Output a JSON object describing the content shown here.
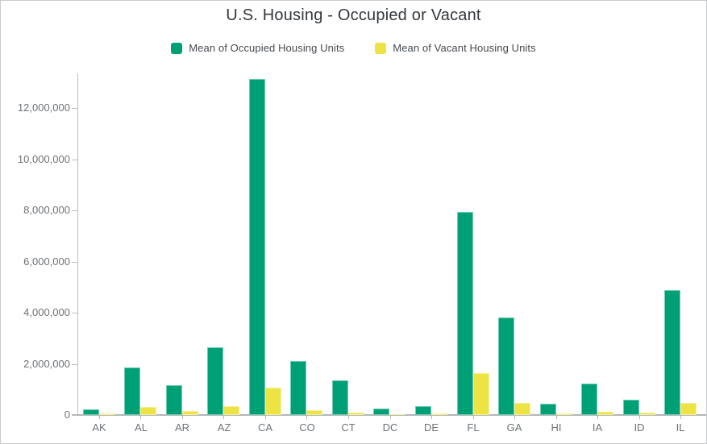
{
  "chart_data": {
    "type": "bar",
    "title": "U.S. Housing - Occupied or Vacant",
    "categories": [
      "AK",
      "AL",
      "AR",
      "AZ",
      "CA",
      "CO",
      "CT",
      "DC",
      "DE",
      "FL",
      "GA",
      "HI",
      "IA",
      "ID",
      "IL"
    ],
    "series": [
      {
        "name": "Mean of Occupied Housing Units",
        "key": "occupied",
        "color": "#00a076",
        "values": [
          220000,
          1870000,
          1160000,
          2630000,
          13130000,
          2110000,
          1370000,
          250000,
          340000,
          7950000,
          3820000,
          440000,
          1230000,
          600000,
          4880000
        ]
      },
      {
        "name": "Mean of Vacant Housing Units",
        "key": "vacant",
        "color": "#ede345",
        "values": [
          50000,
          330000,
          160000,
          360000,
          1070000,
          190000,
          105000,
          35000,
          65000,
          1630000,
          460000,
          75000,
          130000,
          90000,
          470000
        ]
      }
    ],
    "xlabel": "",
    "ylabel": "",
    "ylim": [
      0,
      13200000
    ],
    "yticks": [
      0,
      2000000,
      4000000,
      6000000,
      8000000,
      10000000,
      12000000
    ],
    "ytick_format": "comma",
    "legend_position": "top",
    "grid": false
  },
  "theme": {
    "title_color": "#33383d",
    "legend_text_color": "#44494e",
    "axis_text_color": "#6d7378",
    "axis_line_color": "#bcbec0",
    "baseline_color": "#b3b6b8",
    "card_border_color": "#c9cacb",
    "background": "#ffffff"
  }
}
